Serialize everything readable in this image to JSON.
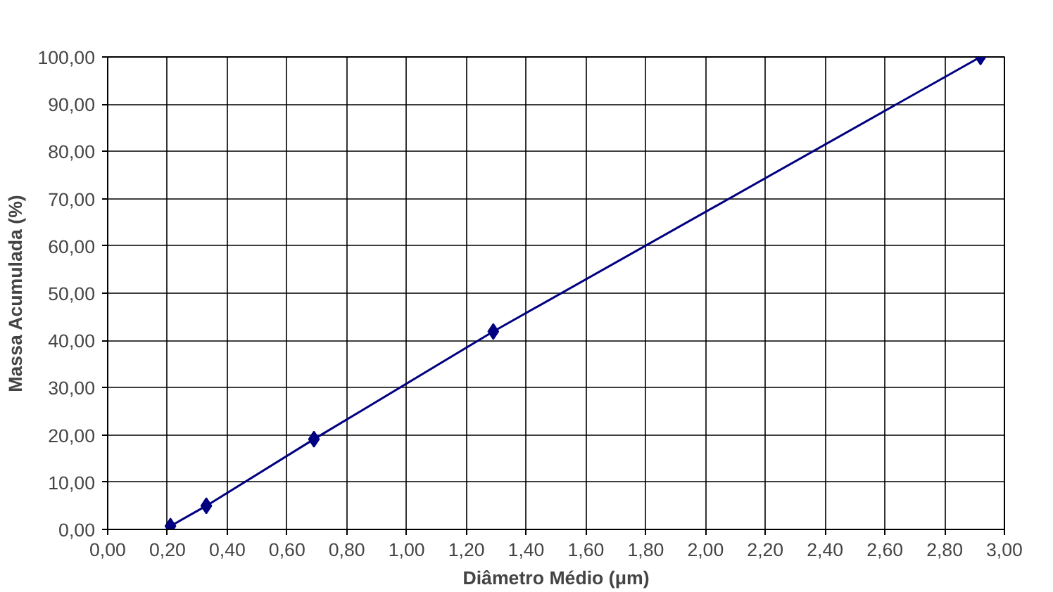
{
  "chart_data": {
    "type": "line",
    "xlabel": "Diâmetro Médio (μm)",
    "ylabel": "Massa Acumulada (%)",
    "x": [
      0.21,
      0.33,
      0.69,
      1.29,
      2.92
    ],
    "series": [
      {
        "color": "#000080",
        "values": [
          0.7,
          5.0,
          19.1,
          41.9,
          100
        ]
      }
    ],
    "xlim": [
      0,
      3
    ],
    "xticks": [
      {
        "value": 0,
        "label": "0,00"
      },
      {
        "value": 0.2,
        "label": "0,20"
      },
      {
        "value": 0.4,
        "label": "0,40"
      },
      {
        "value": 0.6,
        "label": "0,60"
      },
      {
        "value": 0.8,
        "label": "0,80"
      },
      {
        "value": 1.0,
        "label": "1,00"
      },
      {
        "value": 1.2,
        "label": "1,20"
      },
      {
        "value": 1.4,
        "label": "1,40"
      },
      {
        "value": 1.6,
        "label": "1,60"
      },
      {
        "value": 1.8,
        "label": "1,80"
      },
      {
        "value": 2.0,
        "label": "2,00"
      },
      {
        "value": 2.2,
        "label": "2,20"
      },
      {
        "value": 2.4,
        "label": "2,40"
      },
      {
        "value": 2.6,
        "label": "2,60"
      },
      {
        "value": 2.8,
        "label": "2,80"
      },
      {
        "value": 3.0,
        "label": "3,00"
      }
    ],
    "ylim": [
      0,
      100
    ],
    "yticks": [
      {
        "value": 0,
        "label": "0,00"
      },
      {
        "value": 10,
        "label": "10,00"
      },
      {
        "value": 20,
        "label": "20,00"
      },
      {
        "value": 30,
        "label": "30,00"
      },
      {
        "value": 40,
        "label": "40,00"
      },
      {
        "value": 50,
        "label": "50,00"
      },
      {
        "value": 60,
        "label": "60,00"
      },
      {
        "value": 70,
        "label": "70,00"
      },
      {
        "value": 80,
        "label": "80,00"
      },
      {
        "value": 90,
        "label": "90,00"
      },
      {
        "value": 100,
        "label": "100,00"
      }
    ],
    "grid": true,
    "marker": "diamond",
    "line_style": "solid"
  }
}
